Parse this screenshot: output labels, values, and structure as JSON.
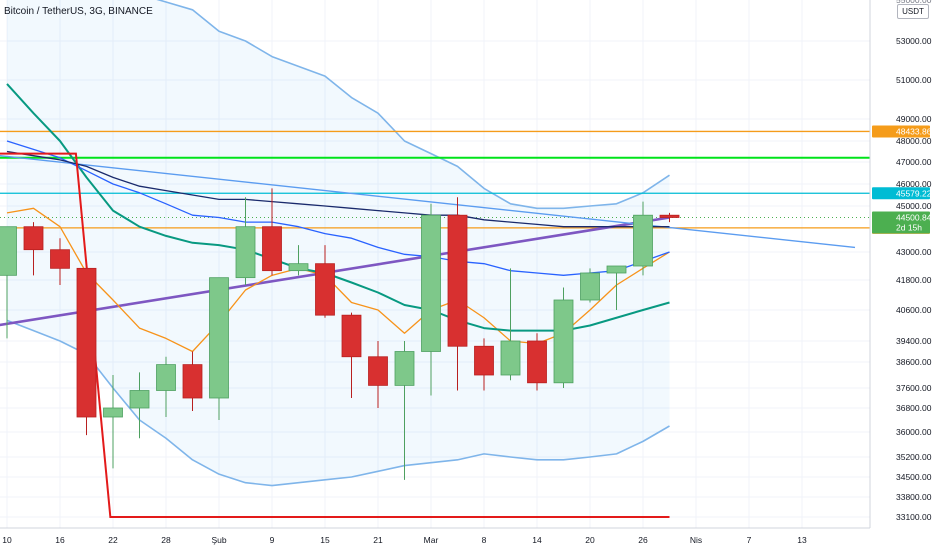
{
  "title": "Bitcoin / TetherUS, 3G, BINANCE",
  "currency_unit": "USDT",
  "chart_data": {
    "type": "candlestick",
    "title": "Bitcoin / TetherUS, 3G, BINANCE",
    "y_axis_unit": "USDT",
    "ylim": [
      32500,
      56000
    ],
    "y_ticks": [
      33100,
      33800,
      34500,
      35200,
      36000,
      36800,
      37600,
      38600,
      39400,
      40600,
      41800,
      43000,
      45000,
      46000,
      47000,
      48000,
      49000,
      51000,
      53000
    ],
    "y_tick_labels": [
      "33100.00",
      "33800.00",
      "34500.00",
      "35200.00",
      "36000.00",
      "36800.00",
      "37600.00",
      "38600.00",
      "39400.00",
      "40600.00",
      "41800.00",
      "43000.00",
      "45000.00",
      "46000.00",
      "47000.00",
      "48000.00",
      "49000.00",
      "51000.00",
      "53000.00"
    ],
    "y_tick_top_partial": "55000.00",
    "x_tick_labels": [
      "10",
      "16",
      "22",
      "28",
      "Şub",
      "9",
      "15",
      "21",
      "Mar",
      "8",
      "14",
      "20",
      "26",
      "Nis",
      "7",
      "13"
    ],
    "x_tick_slots": [
      0,
      2,
      4,
      6,
      8,
      10,
      12,
      14,
      16,
      18,
      20,
      22,
      24,
      26,
      28,
      30
    ],
    "candles": [
      {
        "o": 42000,
        "h": 44100,
        "l": 39500,
        "c": 44100
      },
      {
        "o": 44100,
        "h": 44300,
        "l": 42000,
        "c": 43100
      },
      {
        "o": 43100,
        "h": 43600,
        "l": 41600,
        "c": 42300
      },
      {
        "o": 42300,
        "h": 42300,
        "l": 35900,
        "c": 36500
      },
      {
        "o": 36500,
        "h": 38100,
        "l": 34800,
        "c": 36800
      },
      {
        "o": 36800,
        "h": 38200,
        "l": 35800,
        "c": 37500
      },
      {
        "o": 37500,
        "h": 38800,
        "l": 36500,
        "c": 38500
      },
      {
        "o": 38500,
        "h": 39000,
        "l": 36700,
        "c": 37200
      },
      {
        "o": 37200,
        "h": 41900,
        "l": 36400,
        "c": 41900
      },
      {
        "o": 41900,
        "h": 45400,
        "l": 41600,
        "c": 44100
      },
      {
        "o": 44100,
        "h": 45800,
        "l": 42000,
        "c": 42200
      },
      {
        "o": 42200,
        "h": 43300,
        "l": 42000,
        "c": 42500
      },
      {
        "o": 42500,
        "h": 43300,
        "l": 40300,
        "c": 40400
      },
      {
        "o": 40400,
        "h": 40500,
        "l": 37200,
        "c": 38800
      },
      {
        "o": 38800,
        "h": 39400,
        "l": 36800,
        "c": 37700
      },
      {
        "o": 37700,
        "h": 39400,
        "l": 34400,
        "c": 39000
      },
      {
        "o": 39000,
        "h": 45100,
        "l": 37300,
        "c": 44600
      },
      {
        "o": 44600,
        "h": 45400,
        "l": 37500,
        "c": 39200
      },
      {
        "o": 39200,
        "h": 39500,
        "l": 37500,
        "c": 38100
      },
      {
        "o": 38100,
        "h": 42300,
        "l": 37900,
        "c": 39400
      },
      {
        "o": 39400,
        "h": 39700,
        "l": 37500,
        "c": 37800
      },
      {
        "o": 37800,
        "h": 41500,
        "l": 37600,
        "c": 41000
      },
      {
        "o": 41000,
        "h": 42300,
        "l": 40900,
        "c": 42100
      },
      {
        "o": 42100,
        "h": 42300,
        "l": 40600,
        "c": 42400
      },
      {
        "o": 42400,
        "h": 45200,
        "l": 42000,
        "c": 44600
      },
      {
        "o": 44600,
        "h": 44700,
        "l": 44300,
        "c": 44500
      }
    ],
    "horizontal_levels": [
      {
        "price": 48433.86,
        "label": "48433.86",
        "color": "#f59c1a"
      },
      {
        "price": 47200,
        "label": "",
        "color": "#00e31a"
      },
      {
        "price": 45579.22,
        "label": "45579.22",
        "color": "#00bcd4"
      },
      {
        "price": 44050.26,
        "label": "44050.26",
        "color": "#f59c1a"
      },
      {
        "price": 33100,
        "label": "",
        "color": "#e31a1a"
      }
    ],
    "last_price": {
      "value": "44500.84",
      "countdown": "2d 15h",
      "color": "#4caf50"
    },
    "moving_averages": [
      {
        "color": "#f7931a",
        "values": [
          44700,
          44900,
          44100,
          42100,
          41000,
          39900,
          39500,
          39000,
          40100,
          41400,
          42000,
          42300,
          42000,
          40900,
          40600,
          39700,
          40600,
          41000,
          40300,
          39400,
          39300,
          39700,
          40600,
          41600,
          42300,
          43000
        ]
      },
      {
        "color": "#089981",
        "values": [
          50800,
          49300,
          48000,
          46300,
          44800,
          44100,
          43700,
          43400,
          43300,
          43100,
          42700,
          42300,
          42100,
          41700,
          41300,
          40800,
          40600,
          40200,
          39900,
          39800,
          39800,
          39800,
          40000,
          40300,
          40600,
          40900
        ]
      },
      {
        "color": "#2962ff",
        "values": [
          48000,
          47600,
          47200,
          46600,
          46000,
          45600,
          45100,
          44600,
          44500,
          44300,
          44300,
          44100,
          43800,
          43600,
          43200,
          42900,
          42800,
          42600,
          42500,
          42200,
          42100,
          42000,
          42100,
          42200,
          42600,
          43000
        ]
      },
      {
        "color": "#1a2a6c",
        "values": [
          47500,
          47300,
          47100,
          46800,
          46300,
          45900,
          45700,
          45500,
          45300,
          45300,
          45200,
          45100,
          45000,
          44900,
          44800,
          44700,
          44600,
          44600,
          44400,
          44300,
          44200,
          44100,
          44100,
          44100,
          44100,
          44100
        ]
      }
    ],
    "bollinger_bands": {
      "upper": [
        58000,
        57600,
        57000,
        56400,
        55800,
        55400,
        55000,
        54600,
        53500,
        53000,
        52200,
        51700,
        51200,
        50100,
        49300,
        48000,
        47400,
        46800,
        45800,
        45100,
        44900,
        44900,
        45000,
        45100,
        45600,
        46400
      ],
      "basis": [
        46000,
        45600,
        45200,
        44800,
        44300,
        43900,
        43500,
        43000,
        42700,
        42500,
        42400,
        42300,
        42200,
        42000,
        41700,
        41500,
        41400,
        41200,
        41100,
        41000,
        41000,
        41000,
        41200,
        41300,
        41700,
        42000
      ],
      "lower": [
        40200,
        39800,
        39400,
        38900,
        37600,
        36400,
        35800,
        35100,
        34600,
        34300,
        34200,
        34300,
        34400,
        34500,
        34700,
        34900,
        35000,
        35100,
        35300,
        35200,
        35100,
        35100,
        35200,
        35300,
        35700,
        36200
      ]
    },
    "trendlines": [
      {
        "color": "#7e57c2",
        "from": [
          -1,
          39900
        ],
        "to": [
          25,
          44500
        ]
      },
      {
        "color": "#5b9cf0",
        "from": [
          -1,
          47400
        ],
        "to": [
          32,
          43200
        ]
      }
    ],
    "red_step_line": {
      "color": "#e31a1a",
      "points": [
        [
          -1,
          47400
        ],
        [
          2.6,
          47400
        ],
        [
          3.9,
          33100
        ],
        [
          25,
          33100
        ]
      ]
    }
  }
}
